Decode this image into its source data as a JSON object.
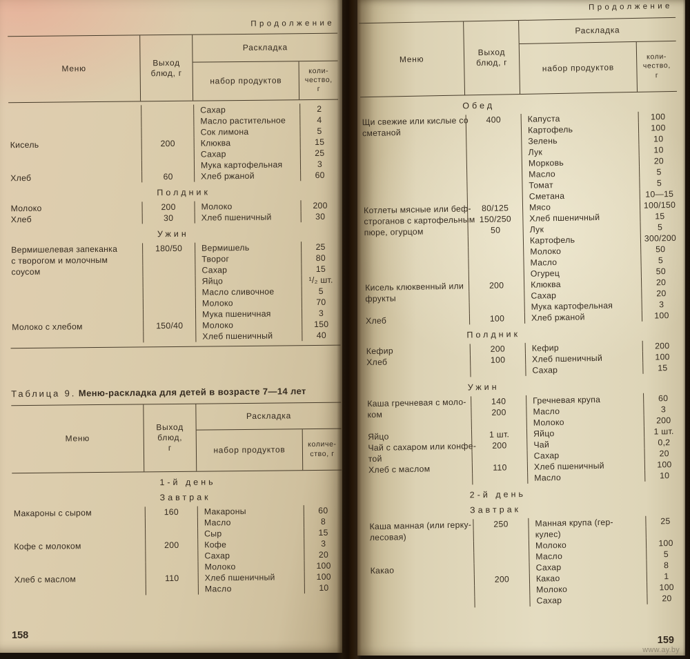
{
  "book": {
    "left_page": {
      "page_number": "158",
      "continuation": "Продолжение",
      "table_top": {
        "header": {
          "menu": "Меню",
          "output": "Выход\nблюд, г",
          "raskladka": "Раскладка",
          "products": "набор продуктов",
          "qty": "коли-\nчество,\nг"
        },
        "blocks": [
          {
            "type": "rows",
            "lines": [
              [
                "",
                "",
                "Сахар",
                "2"
              ],
              [
                "",
                "",
                "Масло растительное",
                "4"
              ],
              [
                "",
                "",
                "Сок лимона",
                "5"
              ],
              [
                "Кисель",
                "200",
                "Клюква",
                "15"
              ],
              [
                "",
                "",
                "Сахар",
                "25"
              ],
              [
                "",
                "",
                "Мука картофельная",
                "3"
              ],
              [
                "Хлеб",
                "60",
                "Хлеб ржаной",
                "60"
              ]
            ]
          },
          {
            "type": "section",
            "label": "Полдник"
          },
          {
            "type": "rows",
            "lines": [
              [
                "Молоко",
                "200",
                "Молоко",
                "200"
              ],
              [
                "Хлеб",
                "30",
                "Хлеб пшеничный",
                "30"
              ]
            ]
          },
          {
            "type": "section",
            "label": "Ужин"
          },
          {
            "type": "rows",
            "lines": [
              [
                "Вермишелевая запеканка",
                "180/50",
                "Вермишель",
                "25"
              ],
              [
                "с творогом и молочным",
                "",
                "Творог",
                "80"
              ],
              [
                "соусом",
                "",
                "Сахар",
                "15"
              ],
              [
                "",
                "",
                "Яйцо",
                "¹/₂ шт."
              ],
              [
                "",
                "",
                "Масло сливочное",
                "5"
              ],
              [
                "",
                "",
                "Молоко",
                "70"
              ],
              [
                "",
                "",
                "Мука пшеничная",
                "3"
              ],
              [
                "Молоко с хлебом",
                "150/40",
                "Молоко",
                "150"
              ],
              [
                "",
                "",
                "Хлеб пшеничный",
                "40"
              ]
            ]
          }
        ]
      },
      "table9": {
        "caption_label": "Таблица 9.",
        "caption_title": "Меню-раскладка для детей в возрасте 7—14 лет",
        "header": {
          "menu": "Меню",
          "output": "Выход\nблюд,\nг",
          "raskladka": "Раскладка",
          "products": "набор продуктов",
          "qty": "количе-\nство, г"
        },
        "blocks": [
          {
            "type": "section",
            "label": "1-й день"
          },
          {
            "type": "section",
            "label": "Завтрак"
          },
          {
            "type": "rows",
            "lines": [
              [
                "Макароны с сыром",
                "160",
                "Макароны",
                "60"
              ],
              [
                "",
                "",
                "Масло",
                "8"
              ],
              [
                "",
                "",
                "Сыр",
                "15"
              ],
              [
                "Кофе с молоком",
                "200",
                "Кофе",
                "3"
              ],
              [
                "",
                "",
                "Сахар",
                "20"
              ],
              [
                "",
                "",
                "Молоко",
                "100"
              ],
              [
                "Хлеб с маслом",
                "110",
                "Хлеб пшеничный",
                "100"
              ],
              [
                "",
                "",
                "Масло",
                "10"
              ]
            ]
          }
        ]
      }
    },
    "right_page": {
      "page_number": "159",
      "continuation": "Продолжение",
      "watermark": "www.ay.by",
      "table": {
        "header": {
          "menu": "Меню",
          "output": "Выход\nблюд, г",
          "raskladka": "Раскладка",
          "products": "набор продуктов",
          "qty": "коли-\nчество,\nг"
        },
        "blocks": [
          {
            "type": "section",
            "label": "Обед"
          },
          {
            "type": "rows",
            "lines": [
              [
                "Щи свежие или кислые со",
                "400",
                "Капуста",
                "100"
              ],
              [
                "сметаной",
                "",
                "Картофель",
                "100"
              ],
              [
                "",
                "",
                "Зелень",
                "10"
              ],
              [
                "",
                "",
                "Лук",
                "10"
              ],
              [
                "",
                "",
                "Морковь",
                "20"
              ],
              [
                "",
                "",
                "Масло",
                "5"
              ],
              [
                "",
                "",
                "Томат",
                "5"
              ],
              [
                "",
                "",
                "Сметана",
                "10—15"
              ],
              [
                "Котлеты мясные или беф-",
                "80/125",
                "Мясо",
                "100/150"
              ],
              [
                "строганов с картофельным",
                "150/250",
                "Хлеб пшеничный",
                "15"
              ],
              [
                "пюре, огурцом",
                "50",
                "Лук",
                "5"
              ],
              [
                "",
                "",
                "Картофель",
                "300/200"
              ],
              [
                "",
                "",
                "Молоко",
                "50"
              ],
              [
                "",
                "",
                "Масло",
                "5"
              ],
              [
                "",
                "",
                "Огурец",
                "50"
              ],
              [
                "Кисель клюквенный или",
                "200",
                "Клюква",
                "20"
              ],
              [
                "фрукты",
                "",
                "Сахар",
                "20"
              ],
              [
                "",
                "",
                "Мука картофельная",
                "3"
              ],
              [
                "Хлеб",
                "100",
                "Хлеб ржаной",
                "100"
              ]
            ]
          },
          {
            "type": "section",
            "label": "Полдник"
          },
          {
            "type": "rows",
            "lines": [
              [
                "Кефир",
                "200",
                "Кефир",
                "200"
              ],
              [
                "Хлеб",
                "100",
                "Хлеб пшеничный",
                "100"
              ],
              [
                "",
                "",
                "Сахар",
                "15"
              ]
            ]
          },
          {
            "type": "section",
            "label": "Ужин"
          },
          {
            "type": "rows",
            "lines": [
              [
                "Каша гречневая с моло-",
                "140",
                "Гречневая крупа",
                "60"
              ],
              [
                "ком",
                "200",
                "Масло",
                "3"
              ],
              [
                "",
                "",
                "Молоко",
                "200"
              ],
              [
                "Яйцо",
                "1 шт.",
                "Яйцо",
                "1 шт."
              ],
              [
                "Чай с сахаром или конфе-",
                "200",
                "Чай",
                "0,2"
              ],
              [
                "той",
                "",
                "Сахар",
                "20"
              ],
              [
                "Хлеб с маслом",
                "110",
                "Хлеб пшеничный",
                "100"
              ],
              [
                "",
                "",
                "Масло",
                "10"
              ]
            ]
          },
          {
            "type": "section",
            "label": "2-й день"
          },
          {
            "type": "section",
            "label": "Завтрак"
          },
          {
            "type": "rows",
            "lines": [
              [
                "Каша манная (или герку-",
                "250",
                "Манная крупа (гер-",
                "25"
              ],
              [
                "лесовая)",
                "",
                "кулес)",
                ""
              ],
              [
                "",
                "",
                "Молоко",
                "100"
              ],
              [
                "",
                "",
                "Масло",
                "5"
              ],
              [
                "Какао",
                "",
                "Сахар",
                "8"
              ],
              [
                "",
                "200",
                "Какао",
                "1"
              ],
              [
                "",
                "",
                "Молоко",
                "100"
              ],
              [
                "",
                "",
                "Сахар",
                "20"
              ]
            ]
          }
        ]
      }
    }
  }
}
